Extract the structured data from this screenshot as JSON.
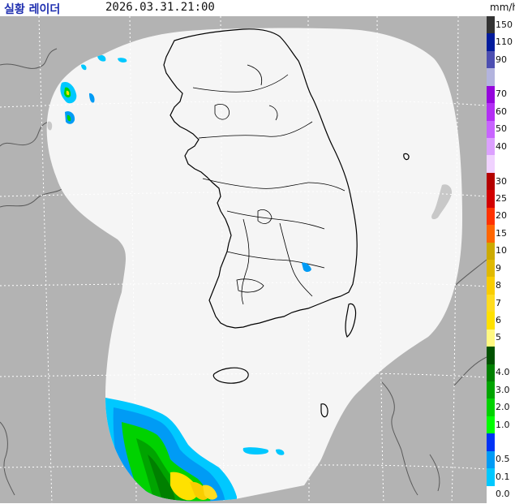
{
  "header": {
    "title": "실황 레이더",
    "timestamp": "2026.03.31.21:00",
    "unit": "mm/h"
  },
  "map": {
    "colors": {
      "outside": "#b3b3b3",
      "coverage": "#f5f5f5",
      "coastline": "#000000",
      "outer_coast": "#5a5a5a",
      "grid": "#ffffff",
      "clutter": "#c8c8c8"
    }
  },
  "legend": [
    {
      "label": "150",
      "color": "#333333"
    },
    {
      "label": "110",
      "color": "#021b9c"
    },
    {
      "label": "90",
      "color": "#4c4eb1"
    },
    {
      "label": "",
      "color": "#b3b4de"
    },
    {
      "label": "70",
      "color": "#9505dc"
    },
    {
      "label": "60",
      "color": "#b32ff4"
    },
    {
      "label": "50",
      "color": "#c864ff"
    },
    {
      "label": "40",
      "color": "#dca0ff"
    },
    {
      "label": "",
      "color": "#f0d2ff"
    },
    {
      "label": "30",
      "color": "#b40000"
    },
    {
      "label": "25",
      "color": "#d20000"
    },
    {
      "label": "20",
      "color": "#ff3200"
    },
    {
      "label": "15",
      "color": "#ff6600"
    },
    {
      "label": "10",
      "color": "#ccaa00"
    },
    {
      "label": "9",
      "color": "#e0b900"
    },
    {
      "label": "8",
      "color": "#f9cd00"
    },
    {
      "label": "7",
      "color": "#ffdc1f"
    },
    {
      "label": "6",
      "color": "#ffe100"
    },
    {
      "label": "5",
      "color": "#fff880"
    },
    {
      "label": "",
      "color": "#005200"
    },
    {
      "label": "4.0",
      "color": "#008000"
    },
    {
      "label": "3.0",
      "color": "#00a400"
    },
    {
      "label": "2.0",
      "color": "#00d200"
    },
    {
      "label": "1.0",
      "color": "#00ff00"
    },
    {
      "label": "",
      "color": "#0033f5"
    },
    {
      "label": "0.5",
      "color": "#009bf5"
    },
    {
      "label": "0.1",
      "color": "#00c8ff"
    },
    {
      "label": "0.0",
      "color": "#ffffff"
    }
  ]
}
